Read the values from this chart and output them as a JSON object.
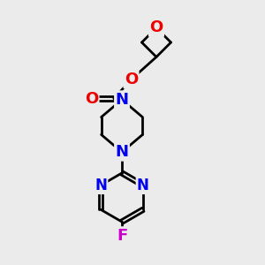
{
  "bg_color": "#ebebeb",
  "bond_color": "#000000",
  "N_color": "#0000ee",
  "O_color": "#ee0000",
  "F_color": "#cc00cc",
  "line_width": 2.0,
  "font_size": 12,
  "fig_size": [
    3.0,
    3.0
  ],
  "dpi": 100,
  "xlim": [
    0,
    10
  ],
  "ylim": [
    0,
    10
  ]
}
